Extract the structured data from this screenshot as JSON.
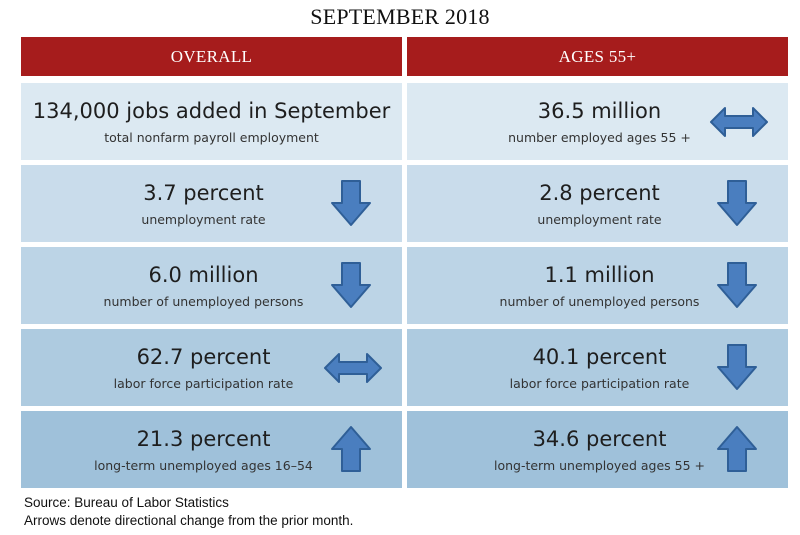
{
  "title": "SEPTEMBER 2018",
  "columns": {
    "left_header": "OVERALL",
    "right_header": "AGES 55+"
  },
  "overall": [
    {
      "value": "134,000 jobs added in September",
      "label": "total nonfarm payroll employment",
      "arrow": "none"
    },
    {
      "value": "3.7 percent",
      "label": "unemployment rate",
      "arrow": "down"
    },
    {
      "value": "6.0 million",
      "label": "number of unemployed persons",
      "arrow": "down"
    },
    {
      "value": "62.7 percent",
      "label": "labor force participation rate",
      "arrow": "both"
    },
    {
      "value": "21.3 percent",
      "label": "long-term unemployed ages 16–54",
      "arrow": "up"
    }
  ],
  "ages55": [
    {
      "value": "36.5 million",
      "label": "number employed ages 55 +",
      "arrow": "both"
    },
    {
      "value": "2.8 percent",
      "label": "unemployment rate",
      "arrow": "down"
    },
    {
      "value": "1.1 million",
      "label": "number of unemployed persons",
      "arrow": "down"
    },
    {
      "value": "40.1 percent",
      "label": "labor force participation rate",
      "arrow": "down"
    },
    {
      "value": "34.6 percent",
      "label": "long-term unemployed ages 55 +",
      "arrow": "up"
    }
  ],
  "colors": {
    "header_red": "#a61c1c",
    "arrow_fill": "#4a7ebf",
    "arrow_stroke": "#2f5f97"
  },
  "footer": {
    "source": "Source: Bureau of Labor Statistics",
    "note": "Arrows denote directional change from the prior month."
  }
}
